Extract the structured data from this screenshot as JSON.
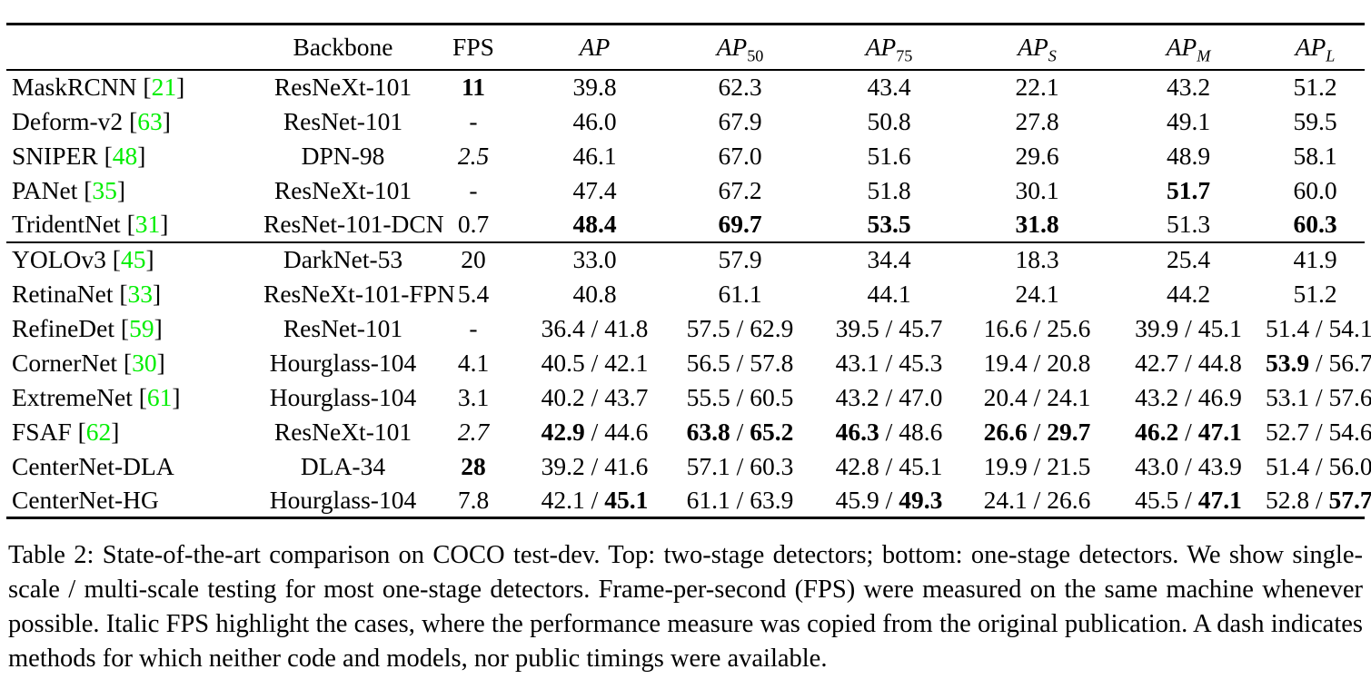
{
  "colors": {
    "citation_green": "#00EE00"
  },
  "table": {
    "headers": {
      "method": "",
      "backbone": "Backbone",
      "fps": "FPS",
      "ap_cols": [
        {
          "base": "AP",
          "sub": ""
        },
        {
          "base": "AP",
          "sub": "50"
        },
        {
          "base": "AP",
          "sub": "75"
        },
        {
          "base": "AP",
          "sub": "S"
        },
        {
          "base": "AP",
          "sub": "M"
        },
        {
          "base": "AP",
          "sub": "L"
        }
      ]
    },
    "pair_separator": " / ",
    "blocks": [
      {
        "name": "two-stage-detectors",
        "rows": [
          {
            "method": "MaskRCNN",
            "cite": "21",
            "backbone": "ResNeXt-101",
            "fps": {
              "text": "11",
              "style": "bold"
            },
            "cells": [
              [
                {
                  "t": "39.8"
                }
              ],
              [
                {
                  "t": "62.3"
                }
              ],
              [
                {
                  "t": "43.4"
                }
              ],
              [
                {
                  "t": "22.1"
                }
              ],
              [
                {
                  "t": "43.2"
                }
              ],
              [
                {
                  "t": "51.2"
                }
              ]
            ]
          },
          {
            "method": "Deform-v2",
            "cite": "63",
            "backbone": "ResNet-101",
            "fps": {
              "text": "-",
              "style": "normal"
            },
            "cells": [
              [
                {
                  "t": "46.0"
                }
              ],
              [
                {
                  "t": "67.9"
                }
              ],
              [
                {
                  "t": "50.8"
                }
              ],
              [
                {
                  "t": "27.8"
                }
              ],
              [
                {
                  "t": "49.1"
                }
              ],
              [
                {
                  "t": "59.5"
                }
              ]
            ]
          },
          {
            "method": "SNIPER",
            "cite": "48",
            "backbone": "DPN-98",
            "fps": {
              "text": "2.5",
              "style": "italic"
            },
            "cells": [
              [
                {
                  "t": "46.1"
                }
              ],
              [
                {
                  "t": "67.0"
                }
              ],
              [
                {
                  "t": "51.6"
                }
              ],
              [
                {
                  "t": "29.6"
                }
              ],
              [
                {
                  "t": "48.9"
                }
              ],
              [
                {
                  "t": "58.1"
                }
              ]
            ]
          },
          {
            "method": "PANet",
            "cite": "35",
            "backbone": "ResNeXt-101",
            "fps": {
              "text": "-",
              "style": "normal"
            },
            "cells": [
              [
                {
                  "t": "47.4"
                }
              ],
              [
                {
                  "t": "67.2"
                }
              ],
              [
                {
                  "t": "51.8"
                }
              ],
              [
                {
                  "t": "30.1"
                }
              ],
              [
                {
                  "t": "51.7",
                  "b": true
                }
              ],
              [
                {
                  "t": "60.0"
                }
              ]
            ]
          },
          {
            "method": "TridentNet",
            "cite": "31",
            "backbone": "ResNet-101-DCN",
            "fps": {
              "text": "0.7",
              "style": "normal"
            },
            "cells": [
              [
                {
                  "t": "48.4",
                  "b": true
                }
              ],
              [
                {
                  "t": "69.7",
                  "b": true
                }
              ],
              [
                {
                  "t": "53.5",
                  "b": true
                }
              ],
              [
                {
                  "t": "31.8",
                  "b": true
                }
              ],
              [
                {
                  "t": "51.3"
                }
              ],
              [
                {
                  "t": "60.3",
                  "b": true
                }
              ]
            ]
          }
        ]
      },
      {
        "name": "one-stage-detectors",
        "rows": [
          {
            "method": "YOLOv3",
            "cite": "45",
            "backbone": "DarkNet-53",
            "fps": {
              "text": "20",
              "style": "normal"
            },
            "cells": [
              [
                {
                  "t": "33.0"
                }
              ],
              [
                {
                  "t": "57.9"
                }
              ],
              [
                {
                  "t": "34.4"
                }
              ],
              [
                {
                  "t": "18.3"
                }
              ],
              [
                {
                  "t": "25.4"
                }
              ],
              [
                {
                  "t": "41.9"
                }
              ]
            ]
          },
          {
            "method": "RetinaNet",
            "cite": "33",
            "backbone": "ResNeXt-101-FPN",
            "fps": {
              "text": "5.4",
              "style": "normal"
            },
            "cells": [
              [
                {
                  "t": "40.8"
                }
              ],
              [
                {
                  "t": "61.1"
                }
              ],
              [
                {
                  "t": "44.1"
                }
              ],
              [
                {
                  "t": "24.1"
                }
              ],
              [
                {
                  "t": "44.2"
                }
              ],
              [
                {
                  "t": "51.2"
                }
              ]
            ]
          },
          {
            "method": "RefineDet",
            "cite": "59",
            "backbone": "ResNet-101",
            "fps": {
              "text": "-",
              "style": "normal"
            },
            "cells": [
              [
                {
                  "t": "36.4"
                },
                {
                  "t": "41.8"
                }
              ],
              [
                {
                  "t": "57.5"
                },
                {
                  "t": "62.9"
                }
              ],
              [
                {
                  "t": "39.5"
                },
                {
                  "t": "45.7"
                }
              ],
              [
                {
                  "t": "16.6"
                },
                {
                  "t": "25.6"
                }
              ],
              [
                {
                  "t": "39.9"
                },
                {
                  "t": "45.1"
                }
              ],
              [
                {
                  "t": "51.4"
                },
                {
                  "t": "54.1"
                }
              ]
            ]
          },
          {
            "method": "CornerNet",
            "cite": "30",
            "backbone": "Hourglass-104",
            "fps": {
              "text": "4.1",
              "style": "normal"
            },
            "cells": [
              [
                {
                  "t": "40.5"
                },
                {
                  "t": "42.1"
                }
              ],
              [
                {
                  "t": "56.5"
                },
                {
                  "t": "57.8"
                }
              ],
              [
                {
                  "t": "43.1"
                },
                {
                  "t": "45.3"
                }
              ],
              [
                {
                  "t": "19.4"
                },
                {
                  "t": "20.8"
                }
              ],
              [
                {
                  "t": "42.7"
                },
                {
                  "t": "44.8"
                }
              ],
              [
                {
                  "t": "53.9",
                  "b": true
                },
                {
                  "t": "56.7"
                }
              ]
            ]
          },
          {
            "method": "ExtremeNet",
            "cite": "61",
            "backbone": "Hourglass-104",
            "fps": {
              "text": "3.1",
              "style": "normal"
            },
            "cells": [
              [
                {
                  "t": "40.2"
                },
                {
                  "t": "43.7"
                }
              ],
              [
                {
                  "t": "55.5"
                },
                {
                  "t": "60.5"
                }
              ],
              [
                {
                  "t": "43.2"
                },
                {
                  "t": "47.0"
                }
              ],
              [
                {
                  "t": "20.4"
                },
                {
                  "t": "24.1"
                }
              ],
              [
                {
                  "t": "43.2"
                },
                {
                  "t": "46.9"
                }
              ],
              [
                {
                  "t": "53.1"
                },
                {
                  "t": "57.6"
                }
              ]
            ]
          },
          {
            "method": "FSAF",
            "cite": "62",
            "backbone": "ResNeXt-101",
            "fps": {
              "text": "2.7",
              "style": "italic"
            },
            "cells": [
              [
                {
                  "t": "42.9",
                  "b": true
                },
                {
                  "t": "44.6"
                }
              ],
              [
                {
                  "t": "63.8",
                  "b": true
                },
                {
                  "t": "65.2",
                  "b": true
                }
              ],
              [
                {
                  "t": "46.3",
                  "b": true
                },
                {
                  "t": "48.6"
                }
              ],
              [
                {
                  "t": "26.6",
                  "b": true
                },
                {
                  "t": "29.7",
                  "b": true
                }
              ],
              [
                {
                  "t": "46.2",
                  "b": true
                },
                {
                  "t": "47.1",
                  "b": true
                }
              ],
              [
                {
                  "t": "52.7"
                },
                {
                  "t": "54.6"
                }
              ]
            ]
          },
          {
            "method": "CenterNet-DLA",
            "cite": "",
            "backbone": "DLA-34",
            "fps": {
              "text": "28",
              "style": "bold"
            },
            "cells": [
              [
                {
                  "t": "39.2"
                },
                {
                  "t": "41.6"
                }
              ],
              [
                {
                  "t": "57.1"
                },
                {
                  "t": "60.3"
                }
              ],
              [
                {
                  "t": "42.8"
                },
                {
                  "t": "45.1"
                }
              ],
              [
                {
                  "t": "19.9"
                },
                {
                  "t": "21.5"
                }
              ],
              [
                {
                  "t": "43.0"
                },
                {
                  "t": "43.9"
                }
              ],
              [
                {
                  "t": "51.4"
                },
                {
                  "t": "56.0"
                }
              ]
            ]
          },
          {
            "method": "CenterNet-HG",
            "cite": "",
            "backbone": "Hourglass-104",
            "fps": {
              "text": "7.8",
              "style": "normal"
            },
            "cells": [
              [
                {
                  "t": "42.1"
                },
                {
                  "t": "45.1",
                  "b": true
                }
              ],
              [
                {
                  "t": "61.1"
                },
                {
                  "t": "63.9"
                }
              ],
              [
                {
                  "t": "45.9"
                },
                {
                  "t": "49.3",
                  "b": true
                }
              ],
              [
                {
                  "t": "24.1"
                },
                {
                  "t": "26.6"
                }
              ],
              [
                {
                  "t": "45.5"
                },
                {
                  "t": "47.1",
                  "b": true
                }
              ],
              [
                {
                  "t": "52.8"
                },
                {
                  "t": "57.7",
                  "b": true
                }
              ]
            ]
          }
        ]
      }
    ]
  },
  "caption": {
    "text": "Table 2:  State-of-the-art comparison on COCO test-dev.  Top: two-stage detectors; bottom: one-stage detectors.  We show single-scale / multi-scale testing for most one-stage detectors. Frame-per-second (FPS) were measured on the same machine whenever possible. Italic FPS highlight the cases, where the performance measure was copied from the original publication. A dash indicates methods for which neither code and models, nor public timings were available."
  }
}
